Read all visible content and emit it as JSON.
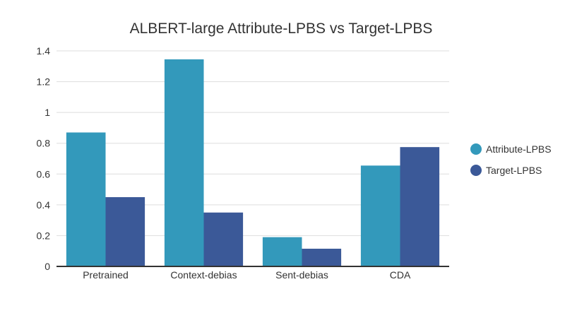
{
  "chart_data": {
    "type": "bar",
    "title": "ALBERT-large Attribute-LPBS vs Target-LPBS",
    "xlabel": "",
    "ylabel": "",
    "categories": [
      "Pretrained",
      "Context-debias",
      "Sent-debias",
      "CDA"
    ],
    "series": [
      {
        "name": "Attribute-LPBS",
        "color": "#3399bb",
        "values": [
          0.87,
          1.345,
          0.19,
          0.655
        ]
      },
      {
        "name": "Target-LPBS",
        "color": "#3b5998",
        "values": [
          0.45,
          0.35,
          0.115,
          0.775
        ]
      }
    ],
    "ylim": [
      0,
      1.4
    ],
    "yticks": [
      "0",
      "0.2",
      "0.4",
      "0.6",
      "0.8",
      "1",
      "1.2",
      "1.4"
    ],
    "grid": true,
    "legend_position": "right"
  }
}
